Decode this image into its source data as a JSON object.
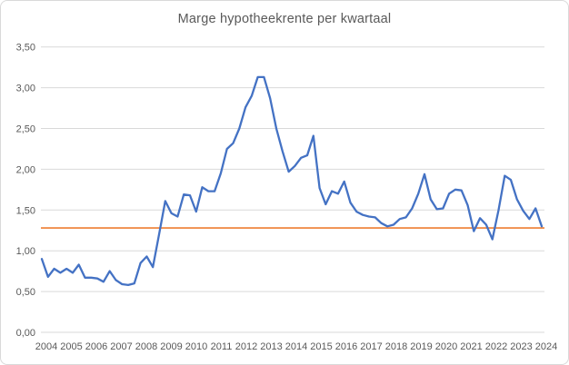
{
  "chart_data": {
    "type": "line",
    "title": "Marge hypotheekrente per kwartaal",
    "xlabel": "",
    "ylabel": "",
    "ylim": [
      0,
      3.5
    ],
    "y_step": 0.5,
    "grid": true,
    "legend_position": "none",
    "y_tick_labels": [
      "0,00",
      "0,50",
      "1,00",
      "1,50",
      "2,00",
      "2,50",
      "3,00",
      "3,50"
    ],
    "x_tick_labels": [
      "2004",
      "2005",
      "2006",
      "2007",
      "2008",
      "2009",
      "2010",
      "2011",
      "2012",
      "2013",
      "2014",
      "2015",
      "2016",
      "2017",
      "2018",
      "2019",
      "2020",
      "2021",
      "2022",
      "2023",
      "2024"
    ],
    "frequency": "quarterly",
    "x_start": "2004 Q1",
    "x_end": "2024 Q2",
    "series": [
      {
        "name": "Marge hypotheekrente per kwartaal",
        "color": "#4472c4",
        "values": [
          0.9,
          0.68,
          0.78,
          0.73,
          0.78,
          0.73,
          0.83,
          0.67,
          0.67,
          0.66,
          0.62,
          0.75,
          0.64,
          0.59,
          0.58,
          0.6,
          0.85,
          0.93,
          0.8,
          1.2,
          1.61,
          1.46,
          1.42,
          1.69,
          1.68,
          1.48,
          1.78,
          1.73,
          1.73,
          1.95,
          2.25,
          2.32,
          2.5,
          2.76,
          2.9,
          3.13,
          3.13,
          2.87,
          2.5,
          2.22,
          1.97,
          2.04,
          2.14,
          2.17,
          2.41,
          1.77,
          1.57,
          1.73,
          1.7,
          1.85,
          1.59,
          1.48,
          1.44,
          1.42,
          1.41,
          1.34,
          1.3,
          1.32,
          1.39,
          1.41,
          1.52,
          1.7,
          1.94,
          1.63,
          1.51,
          1.52,
          1.7,
          1.75,
          1.74,
          1.56,
          1.24,
          1.4,
          1.32,
          1.14,
          1.5,
          1.92,
          1.87,
          1.63,
          1.49,
          1.39,
          1.52,
          1.3
        ]
      },
      {
        "name": "referentielijn",
        "color": "#ed7d31",
        "constant_value": 1.28
      }
    ],
    "colors": {
      "grid": "#d9d9d9",
      "text": "#595959",
      "border": "#d9d9d9",
      "background": "#ffffff"
    }
  }
}
